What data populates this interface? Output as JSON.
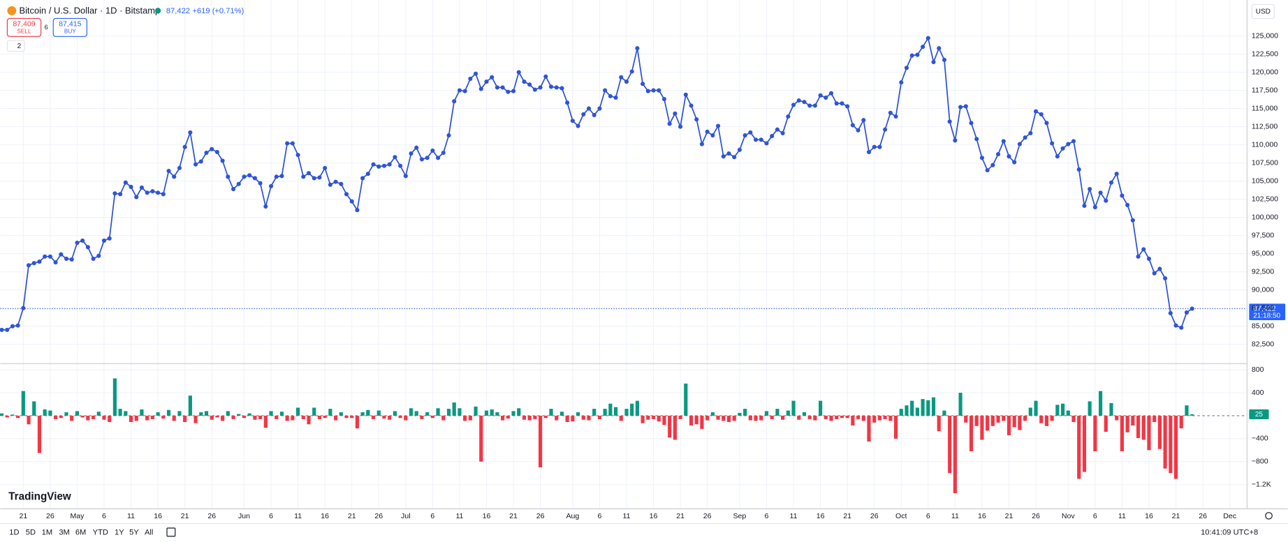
{
  "ui": {
    "symbol": "Bitcoin / U.S. Dollar · 1D · Bitstamp",
    "last": "87,422",
    "change": "+619 (+0.71%)",
    "sell_price": "87,409",
    "sell": "SELL",
    "spread": "6",
    "buy_price": "87,415",
    "buy": "BUY",
    "indicators": "2",
    "currency": "USD",
    "logo": "TradingView",
    "ranges": [
      "1D",
      "5D",
      "1M",
      "3M",
      "6M",
      "YTD",
      "1Y",
      "5Y",
      "All"
    ],
    "clock": "10:41:09 UTC+8"
  },
  "chart_data": [
    {
      "type": "line",
      "color": "#2f54d6",
      "grid": true,
      "last_label": "87,422",
      "countdown": "21:18:50",
      "categories": [
        null,
        null,
        null,
        null,
        "21",
        null,
        null,
        null,
        null,
        "26",
        null,
        null,
        null,
        null,
        "May",
        null,
        null,
        null,
        null,
        "6",
        null,
        null,
        null,
        null,
        "11",
        null,
        null,
        null,
        null,
        "16",
        null,
        null,
        null,
        null,
        "21",
        null,
        null,
        null,
        null,
        "26",
        null,
        null,
        null,
        null,
        null,
        "Jun",
        null,
        null,
        null,
        null,
        "6",
        null,
        null,
        null,
        null,
        "11",
        null,
        null,
        null,
        null,
        "16",
        null,
        null,
        null,
        null,
        "21",
        null,
        null,
        null,
        null,
        "26",
        null,
        null,
        null,
        null,
        "Jul",
        null,
        null,
        null,
        null,
        "6",
        null,
        null,
        null,
        null,
        "11",
        null,
        null,
        null,
        null,
        "16",
        null,
        null,
        null,
        null,
        "21",
        null,
        null,
        null,
        null,
        "26",
        null,
        null,
        null,
        null,
        null,
        "Aug",
        null,
        null,
        null,
        null,
        "6",
        null,
        null,
        null,
        null,
        "11",
        null,
        null,
        null,
        null,
        "16",
        null,
        null,
        null,
        null,
        "21",
        null,
        null,
        null,
        null,
        "26",
        null,
        null,
        null,
        null,
        null,
        "Sep",
        null,
        null,
        null,
        null,
        "6",
        null,
        null,
        null,
        null,
        "11",
        null,
        null,
        null,
        null,
        "16",
        null,
        null,
        null,
        null,
        "21",
        null,
        null,
        null,
        null,
        "26",
        null,
        null,
        null,
        null,
        "Oct",
        null,
        null,
        null,
        null,
        "6",
        null,
        null,
        null,
        null,
        "11",
        null,
        null,
        null,
        null,
        "16",
        null,
        null,
        null,
        null,
        "21",
        null,
        null,
        null,
        null,
        "26",
        null,
        null,
        null,
        null,
        null,
        "Nov",
        null,
        null,
        null,
        null,
        "6",
        null,
        null,
        null,
        null,
        "11",
        null,
        null,
        null,
        null,
        "16",
        null,
        null,
        null,
        null,
        "21",
        null,
        null,
        null,
        null,
        "26",
        null,
        null,
        null,
        null,
        "Dec"
      ],
      "values": [
        84500,
        84500,
        85000,
        85100,
        87500,
        93400,
        93700,
        93900,
        94600,
        94600,
        93800,
        94900,
        94300,
        94200,
        96500,
        96800,
        95900,
        94300,
        94700,
        96800,
        97100,
        103300,
        103200,
        104800,
        104200,
        102800,
        104100,
        103400,
        103600,
        103400,
        103200,
        106400,
        105600,
        106800,
        109700,
        111700,
        107300,
        107700,
        108900,
        109400,
        109000,
        107800,
        105600,
        103900,
        104600,
        105600,
        105800,
        105400,
        104700,
        101500,
        104300,
        105600,
        105700,
        110200,
        110200,
        108600,
        105600,
        106100,
        105400,
        105500,
        106800,
        104500,
        104900,
        104600,
        103200,
        102200,
        101000,
        105400,
        106000,
        107300,
        107000,
        107100,
        107300,
        108300,
        107100,
        105700,
        108800,
        109600,
        108000,
        108200,
        109200,
        108200,
        108900,
        111300,
        116000,
        117500,
        117400,
        119100,
        119800,
        117700,
        118700,
        119300,
        117900,
        117900,
        117300,
        117400,
        120000,
        118700,
        118300,
        117600,
        117900,
        119400,
        118000,
        117900,
        117800,
        115800,
        113300,
        112600,
        114200,
        115000,
        114100,
        115000,
        117500,
        116700,
        116500,
        119300,
        118700,
        120100,
        123300,
        118400,
        117400,
        117500,
        117500,
        116300,
        112900,
        114300,
        112500,
        116900,
        115400,
        113500,
        110100,
        111800,
        111300,
        112600,
        108400,
        108800,
        108300,
        109300,
        111300,
        111700,
        110700,
        110700,
        110200,
        111200,
        112100,
        111600,
        113900,
        115500,
        116100,
        115900,
        115400,
        115400,
        116800,
        116500,
        117100,
        115700,
        115700,
        115300,
        112700,
        112000,
        113400,
        109000,
        109700,
        109700,
        112100,
        114400,
        113900,
        118600,
        120600,
        122300,
        122400,
        123500,
        124700,
        121400,
        123300,
        121700,
        113200,
        110600,
        115200,
        115300,
        113000,
        110800,
        108200,
        106500,
        107200,
        108700,
        110500,
        108400,
        107600,
        110100,
        111000,
        111600,
        114600,
        114200,
        113000,
        110200,
        108400,
        109500,
        110100,
        110500,
        106600,
        101600,
        103900,
        101400,
        103400,
        102300,
        104800,
        106000,
        103000,
        101700,
        99600,
        94600,
        95600,
        94300,
        92300,
        92900,
        91600,
        86800,
        85100,
        84800,
        86900,
        87422,
        null,
        null,
        null,
        null,
        null,
        null,
        null
      ],
      "ylim": [
        79900,
        129500
      ],
      "yticks": [
        {
          "value": 82500,
          "label": "82,500"
        },
        {
          "value": 85000,
          "label": "85,000"
        },
        {
          "value": 87500,
          "label": "87,500"
        },
        {
          "value": 90000,
          "label": "90,000"
        },
        {
          "value": 92500,
          "label": "92,500"
        },
        {
          "value": 95000,
          "label": "95,000"
        },
        {
          "value": 97500,
          "label": "97,500"
        },
        {
          "value": 100000,
          "label": "100,000"
        },
        {
          "value": 102500,
          "label": "102,500"
        },
        {
          "value": 105000,
          "label": "105,000"
        },
        {
          "value": 107500,
          "label": "107,500"
        },
        {
          "value": 110000,
          "label": "110,000"
        },
        {
          "value": 112500,
          "label": "112,500"
        },
        {
          "value": 115000,
          "label": "115,000"
        },
        {
          "value": 117500,
          "label": "117,500"
        },
        {
          "value": 120000,
          "label": "120,000"
        },
        {
          "value": 122500,
          "label": "122,500"
        },
        {
          "value": 125000,
          "label": "125,000"
        }
      ]
    },
    {
      "type": "bar",
      "colors": {
        "up": "#089981",
        "down": "#f23645"
      },
      "grid": true,
      "values": [
        40,
        -30,
        20,
        -40,
        430,
        -150,
        250,
        -650,
        110,
        90,
        -60,
        -40,
        60,
        -90,
        80,
        -30,
        -80,
        -60,
        70,
        -70,
        -110,
        650,
        120,
        80,
        -110,
        -90,
        110,
        -80,
        -60,
        60,
        -50,
        100,
        -90,
        80,
        -110,
        350,
        -130,
        60,
        80,
        -70,
        -30,
        -90,
        80,
        -60,
        30,
        -40,
        40,
        -70,
        -60,
        -210,
        80,
        -60,
        70,
        -90,
        -80,
        140,
        -60,
        -150,
        140,
        -60,
        -40,
        120,
        -80,
        60,
        -40,
        -40,
        -220,
        60,
        100,
        -60,
        90,
        -50,
        -70,
        80,
        -40,
        -80,
        130,
        80,
        -60,
        60,
        -40,
        130,
        -80,
        120,
        230,
        130,
        -90,
        -80,
        160,
        -800,
        90,
        110,
        60,
        -80,
        -50,
        80,
        130,
        -70,
        -80,
        -60,
        -900,
        -40,
        120,
        -80,
        70,
        -110,
        -100,
        60,
        -70,
        -80,
        120,
        -60,
        120,
        210,
        150,
        -90,
        120,
        210,
        260,
        -130,
        -70,
        -60,
        -100,
        -160,
        -380,
        -420,
        -60,
        560,
        -170,
        -150,
        -230,
        -80,
        60,
        -70,
        -90,
        -110,
        -90,
        50,
        120,
        -80,
        -90,
        -80,
        80,
        -60,
        120,
        -70,
        90,
        260,
        -70,
        60,
        -60,
        -80,
        260,
        -60,
        -90,
        -60,
        -40,
        -40,
        -170,
        -60,
        -90,
        -450,
        -120,
        -80,
        -60,
        -90,
        -400,
        120,
        180,
        260,
        140,
        290,
        270,
        320,
        -270,
        90,
        -1000,
        -1350,
        400,
        -120,
        -620,
        -180,
        -420,
        -260,
        -180,
        -120,
        -90,
        -340,
        -200,
        -250,
        -90,
        140,
        260,
        -130,
        -180,
        -90,
        190,
        210,
        90,
        -110,
        -1100,
        -980,
        250,
        -620,
        430,
        -280,
        220,
        -80,
        -620,
        -290,
        -170,
        -390,
        -420,
        -600,
        -110,
        -580,
        -920,
        -1000,
        -1100,
        -220,
        180,
        25,
        null,
        null,
        null,
        null,
        null,
        null,
        null
      ],
      "ylim": [
        -1615,
        900
      ],
      "yticks": [
        {
          "value": -1200,
          "label": "−1.2K"
        },
        {
          "value": -800,
          "label": "−800"
        },
        {
          "value": -400,
          "label": "−400"
        },
        400,
        800
      ]
    }
  ]
}
